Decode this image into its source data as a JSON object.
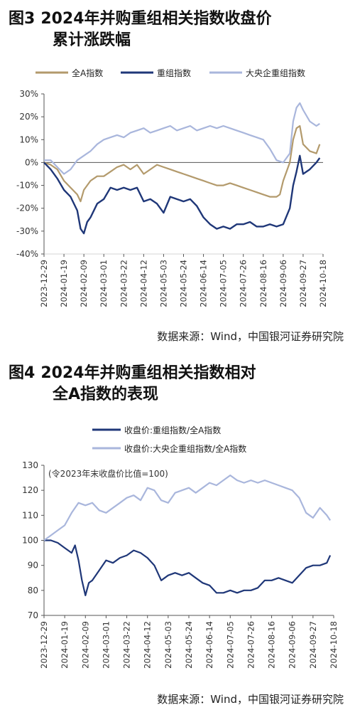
{
  "figure3": {
    "label": "图3",
    "title_line1": "2024年并购重组相关指数收盘价",
    "title_line2": "累计涨跌幅",
    "source": "数据来源：Wind，中国银河证券研究院"
  },
  "figure4": {
    "label": "图4",
    "title_line1": "2024年并购重组相关指数相对",
    "title_line2": "全A指数的表现",
    "source": "数据来源：Wind，中国银河证券研究院"
  },
  "chart_data": [
    {
      "type": "line",
      "x_tick_labels": [
        "2023-12-29",
        "2024-01-19",
        "2024-02-09",
        "2024-03-01",
        "2024-03-22",
        "2024-04-12",
        "2024-05-03",
        "2024-05-24",
        "2024-06-14",
        "2024-07-05",
        "2024-07-26",
        "2024-08-16",
        "2024-09-06",
        "2024-09-27",
        "2024-10-18"
      ],
      "y_tick_labels": [
        "30%",
        "20%",
        "10%",
        "0%",
        "-10%",
        "-20%",
        "-30%",
        "-40%"
      ],
      "ylim": [
        -40,
        30
      ],
      "xlim": [
        0,
        42
      ],
      "legend_position": "top",
      "series": [
        {
          "name": "全A指数",
          "color": "#b39a6c",
          "points": [
            [
              0,
              0
            ],
            [
              1,
              -1
            ],
            [
              2,
              -3
            ],
            [
              3,
              -8
            ],
            [
              4,
              -11
            ],
            [
              5,
              -14
            ],
            [
              5.5,
              -17
            ],
            [
              6,
              -12
            ],
            [
              7,
              -8
            ],
            [
              8,
              -6
            ],
            [
              9,
              -6
            ],
            [
              10,
              -4
            ],
            [
              11,
              -2
            ],
            [
              12,
              -1
            ],
            [
              13,
              -3
            ],
            [
              14,
              -1
            ],
            [
              15,
              -5
            ],
            [
              16,
              -3
            ],
            [
              17,
              -1
            ],
            [
              18,
              -2
            ],
            [
              19,
              -3
            ],
            [
              20,
              -4
            ],
            [
              21,
              -5
            ],
            [
              22,
              -6
            ],
            [
              23,
              -7
            ],
            [
              24,
              -8
            ],
            [
              25,
              -9
            ],
            [
              26,
              -10
            ],
            [
              27,
              -10
            ],
            [
              28,
              -9
            ],
            [
              29,
              -10
            ],
            [
              30,
              -11
            ],
            [
              31,
              -12
            ],
            [
              32,
              -13
            ],
            [
              33,
              -14
            ],
            [
              34,
              -15
            ],
            [
              35,
              -15
            ],
            [
              35.5,
              -14
            ],
            [
              36,
              -8
            ],
            [
              37,
              0
            ],
            [
              37.5,
              10
            ],
            [
              38,
              15
            ],
            [
              38.5,
              16
            ],
            [
              39,
              8
            ],
            [
              40,
              5
            ],
            [
              41,
              4
            ],
            [
              41.5,
              8
            ]
          ]
        },
        {
          "name": "重组指数",
          "color": "#1f3778",
          "points": [
            [
              0,
              0
            ],
            [
              1,
              -3
            ],
            [
              2,
              -7
            ],
            [
              3,
              -12
            ],
            [
              4,
              -15
            ],
            [
              5,
              -21
            ],
            [
              5.5,
              -29
            ],
            [
              6,
              -31
            ],
            [
              6.5,
              -26
            ],
            [
              7,
              -24
            ],
            [
              8,
              -18
            ],
            [
              9,
              -16
            ],
            [
              10,
              -11
            ],
            [
              11,
              -12
            ],
            [
              12,
              -11
            ],
            [
              13,
              -12
            ],
            [
              14,
              -11
            ],
            [
              15,
              -17
            ],
            [
              16,
              -16
            ],
            [
              17,
              -18
            ],
            [
              18,
              -22
            ],
            [
              19,
              -15
            ],
            [
              20,
              -16
            ],
            [
              21,
              -17
            ],
            [
              22,
              -16
            ],
            [
              23,
              -19
            ],
            [
              24,
              -24
            ],
            [
              25,
              -27
            ],
            [
              26,
              -29
            ],
            [
              27,
              -28
            ],
            [
              28,
              -29
            ],
            [
              29,
              -27
            ],
            [
              30,
              -27
            ],
            [
              31,
              -26
            ],
            [
              32,
              -28
            ],
            [
              33,
              -28
            ],
            [
              34,
              -27
            ],
            [
              35,
              -28
            ],
            [
              36,
              -27
            ],
            [
              37,
              -20
            ],
            [
              37.5,
              -10
            ],
            [
              38,
              -4
            ],
            [
              38.5,
              3
            ],
            [
              39,
              -5
            ],
            [
              40,
              -3
            ],
            [
              41,
              0
            ],
            [
              41.5,
              2
            ]
          ]
        },
        {
          "name": "大央企重组指数",
          "color": "#a9b6dc",
          "points": [
            [
              0,
              1
            ],
            [
              1,
              1
            ],
            [
              2,
              -2
            ],
            [
              3,
              -5
            ],
            [
              4,
              -3
            ],
            [
              5,
              1
            ],
            [
              6,
              3
            ],
            [
              7,
              5
            ],
            [
              8,
              8
            ],
            [
              9,
              10
            ],
            [
              10,
              11
            ],
            [
              11,
              12
            ],
            [
              12,
              11
            ],
            [
              13,
              13
            ],
            [
              14,
              14
            ],
            [
              15,
              15
            ],
            [
              16,
              13
            ],
            [
              17,
              14
            ],
            [
              18,
              15
            ],
            [
              19,
              16
            ],
            [
              20,
              14
            ],
            [
              21,
              15
            ],
            [
              22,
              16
            ],
            [
              23,
              14
            ],
            [
              24,
              15
            ],
            [
              25,
              16
            ],
            [
              26,
              15
            ],
            [
              27,
              16
            ],
            [
              28,
              15
            ],
            [
              29,
              14
            ],
            [
              30,
              13
            ],
            [
              31,
              12
            ],
            [
              32,
              11
            ],
            [
              33,
              10
            ],
            [
              34,
              6
            ],
            [
              35,
              1
            ],
            [
              36,
              0
            ],
            [
              37,
              4
            ],
            [
              37.5,
              18
            ],
            [
              38,
              24
            ],
            [
              38.5,
              26
            ],
            [
              39,
              23
            ],
            [
              40,
              18
            ],
            [
              41,
              16
            ],
            [
              41.5,
              17
            ]
          ]
        }
      ]
    },
    {
      "type": "line",
      "annotation": "(令2023年末收盘价比值=100)",
      "x_tick_labels": [
        "2023-12-29",
        "2024-01-19",
        "2024-02-09",
        "2024-03-01",
        "2024-03-22",
        "2024-04-12",
        "2024-05-03",
        "2024-05-24",
        "2024-06-14",
        "2024-07-05",
        "2024-07-26",
        "2024-08-16",
        "2024-09-06",
        "2024-09-27",
        "2024-10-18"
      ],
      "y_tick_labels": [
        "130",
        "120",
        "110",
        "100",
        "90",
        "80",
        "70"
      ],
      "ylim": [
        70,
        130
      ],
      "xlim": [
        0,
        42
      ],
      "legend_position": "top",
      "series": [
        {
          "name": "收盘价:重组指数/全A指数",
          "color": "#1f3778",
          "points": [
            [
              0,
              100
            ],
            [
              1,
              100
            ],
            [
              2,
              99
            ],
            [
              3,
              97
            ],
            [
              4,
              95
            ],
            [
              4.5,
              98
            ],
            [
              5,
              92
            ],
            [
              5.5,
              84
            ],
            [
              6,
              78
            ],
            [
              6.5,
              83
            ],
            [
              7,
              84
            ],
            [
              8,
              88
            ],
            [
              9,
              92
            ],
            [
              10,
              91
            ],
            [
              11,
              93
            ],
            [
              12,
              94
            ],
            [
              13,
              96
            ],
            [
              14,
              95
            ],
            [
              15,
              93
            ],
            [
              16,
              90
            ],
            [
              17,
              84
            ],
            [
              18,
              86
            ],
            [
              19,
              87
            ],
            [
              20,
              86
            ],
            [
              21,
              87
            ],
            [
              22,
              85
            ],
            [
              23,
              83
            ],
            [
              24,
              82
            ],
            [
              25,
              79
            ],
            [
              26,
              79
            ],
            [
              27,
              80
            ],
            [
              28,
              79
            ],
            [
              29,
              80
            ],
            [
              30,
              80
            ],
            [
              31,
              81
            ],
            [
              32,
              84
            ],
            [
              33,
              84
            ],
            [
              34,
              85
            ],
            [
              35,
              84
            ],
            [
              36,
              83
            ],
            [
              37,
              86
            ],
            [
              38,
              89
            ],
            [
              39,
              90
            ],
            [
              40,
              90
            ],
            [
              41,
              91
            ],
            [
              41.5,
              94
            ]
          ]
        },
        {
          "name": "收盘价:大央企重组指数/全A指数",
          "color": "#a9b6dc",
          "points": [
            [
              0,
              100
            ],
            [
              1,
              102
            ],
            [
              2,
              104
            ],
            [
              3,
              106
            ],
            [
              4,
              111
            ],
            [
              5,
              115
            ],
            [
              6,
              114
            ],
            [
              7,
              115
            ],
            [
              8,
              112
            ],
            [
              9,
              111
            ],
            [
              10,
              113
            ],
            [
              11,
              115
            ],
            [
              12,
              117
            ],
            [
              13,
              118
            ],
            [
              14,
              116
            ],
            [
              15,
              121
            ],
            [
              16,
              120
            ],
            [
              17,
              116
            ],
            [
              18,
              115
            ],
            [
              19,
              119
            ],
            [
              20,
              120
            ],
            [
              21,
              121
            ],
            [
              22,
              119
            ],
            [
              23,
              121
            ],
            [
              24,
              123
            ],
            [
              25,
              122
            ],
            [
              26,
              124
            ],
            [
              27,
              126
            ],
            [
              28,
              124
            ],
            [
              29,
              123
            ],
            [
              30,
              124
            ],
            [
              31,
              123
            ],
            [
              32,
              124
            ],
            [
              33,
              123
            ],
            [
              34,
              122
            ],
            [
              35,
              121
            ],
            [
              36,
              120
            ],
            [
              37,
              117
            ],
            [
              38,
              111
            ],
            [
              39,
              109
            ],
            [
              40,
              113
            ],
            [
              41,
              110
            ],
            [
              41.5,
              108
            ]
          ]
        }
      ]
    }
  ]
}
